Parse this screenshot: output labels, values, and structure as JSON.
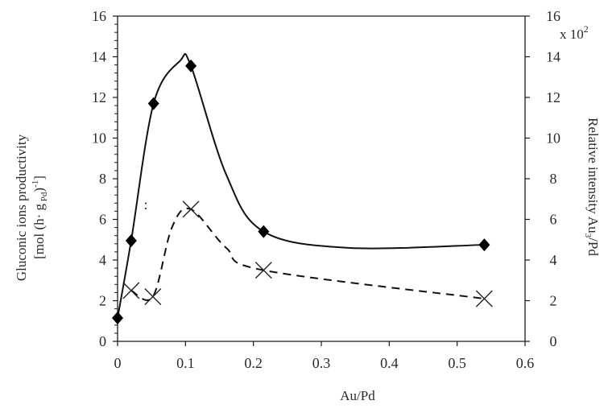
{
  "chart_data": {
    "type": "line",
    "title": "",
    "xlabel": "Au/Pd",
    "ylabel": "Gluconic ions productivity [mol (h· g Pd)-1]",
    "ylabel_line1": "Gluconic ions productivity",
    "ylabel_line2": "[mol (h· g Pd)-1]",
    "y2label": "Relative intensity Au3/Pd",
    "y2_multiplier": "x 10^2",
    "xlim": [
      0,
      0.6
    ],
    "ylim": [
      0,
      16
    ],
    "y2lim": [
      0,
      16
    ],
    "x_ticks": [
      "0",
      "0.1",
      "0.2",
      "0.3",
      "0.4",
      "0.5",
      "0.6"
    ],
    "y_ticks": [
      "0",
      "2",
      "4",
      "6",
      "8",
      "10",
      "12",
      "14",
      "16"
    ],
    "y2_ticks": [
      "0",
      "2",
      "4",
      "6",
      "8",
      "10",
      "12",
      "14",
      "16"
    ],
    "grid": false,
    "legend": null,
    "series": [
      {
        "name": "Gluconic ions productivity",
        "axis": "left",
        "marker": "diamond",
        "line": "solid smooth",
        "x": [
          0,
          0.02,
          0.053,
          0.108,
          0.215,
          0.54
        ],
        "values": [
          1.15,
          4.95,
          11.7,
          13.55,
          5.4,
          4.75
        ]
      },
      {
        "name": "Relative intensity Au3/Pd (x10^2)",
        "axis": "right",
        "marker": "cross",
        "line": "dashed smooth",
        "x": [
          0.02,
          0.052,
          0.108,
          0.215,
          0.54
        ],
        "values": [
          2.5,
          2.2,
          6.5,
          3.5,
          2.1
        ]
      }
    ],
    "annotations": [
      ":"
    ]
  }
}
